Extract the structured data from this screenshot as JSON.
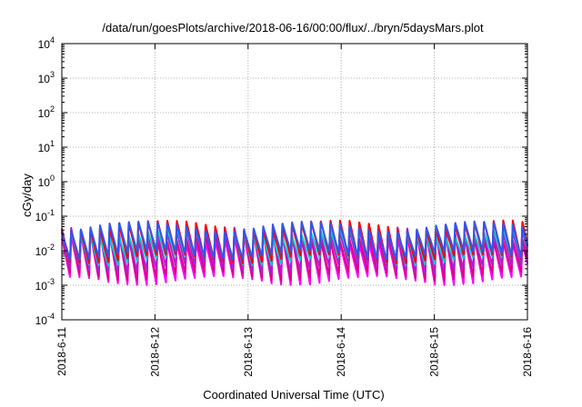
{
  "chart_data": {
    "type": "line",
    "title": "/data/run/goesPlots/archive/2018-06-16/00:00/flux/../bryn/5daysMars.plot",
    "xlabel": "Coordinated Universal Time (UTC)",
    "ylabel": "cGy/day",
    "x_ticks": [
      "2018-6-11",
      "2018-6-12",
      "2018-6-13",
      "2018-6-14",
      "2018-6-15",
      "2018-6-16"
    ],
    "xlim": [
      "2018-06-11",
      "2018-06-16"
    ],
    "y_scale": "log",
    "ylim": [
      0.0001,
      10000
    ],
    "y_ticks": [
      {
        "base": "10",
        "exp": "4"
      },
      {
        "base": "10",
        "exp": "3"
      },
      {
        "base": "10",
        "exp": "2"
      },
      {
        "base": "10",
        "exp": "1"
      },
      {
        "base": "10",
        "exp": "0"
      },
      {
        "base": "10",
        "exp": "-1"
      },
      {
        "base": "10",
        "exp": "-2"
      },
      {
        "base": "10",
        "exp": "-3"
      },
      {
        "base": "10",
        "exp": "-4"
      }
    ],
    "grid": true,
    "sawtooth_cycles_per_day": 9.7,
    "series": [
      {
        "color": "#ff00ff",
        "peak": 0.03,
        "trough": 0.0016
      },
      {
        "color": "#dd0088",
        "peak": 0.035,
        "trough": 0.0022
      },
      {
        "color": "#aa22cc",
        "peak": 0.045,
        "trough": 0.0035
      },
      {
        "color": "#00cccc",
        "peak": 0.045,
        "trough": 0.006
      },
      {
        "color": "#ff0000",
        "peak": 0.07,
        "trough": 0.007
      },
      {
        "color": "#3355ee",
        "peak": 0.065,
        "trough": 0.009
      }
    ]
  }
}
